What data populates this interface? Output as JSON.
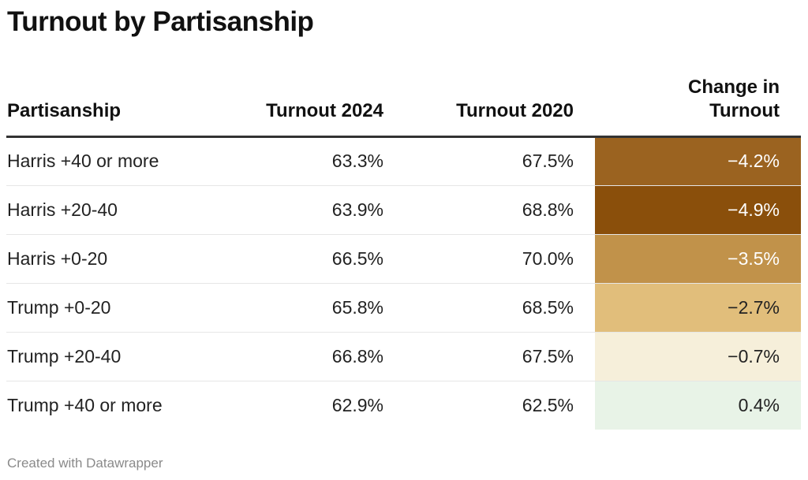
{
  "title": "Turnout by Partisanship",
  "credit": "Created with Datawrapper",
  "chart_data": {
    "type": "table",
    "title": "Turnout by Partisanship",
    "columns": [
      "Partisanship",
      "Turnout 2024",
      "Turnout 2020",
      "Change in Turnout"
    ],
    "rows": [
      {
        "partisanship": "Harris +40 or more",
        "turnout_2024": "63.3%",
        "turnout_2020": "67.5%",
        "change": "−4.2%",
        "change_value": -4.2,
        "color": "#9b6320"
      },
      {
        "partisanship": "Harris +20-40",
        "turnout_2024": "63.9%",
        "turnout_2020": "68.8%",
        "change": "−4.9%",
        "change_value": -4.9,
        "color": "#8a4f0b"
      },
      {
        "partisanship": "Harris +0-20",
        "turnout_2024": "66.5%",
        "turnout_2020": "70.0%",
        "change": "−3.5%",
        "change_value": -3.5,
        "color": "#c1924a"
      },
      {
        "partisanship": "Trump +0-20",
        "turnout_2024": "65.8%",
        "turnout_2020": "68.5%",
        "change": "−2.7%",
        "change_value": -2.7,
        "color": "#e1be7b"
      },
      {
        "partisanship": "Trump +20-40",
        "turnout_2024": "66.8%",
        "turnout_2020": "67.5%",
        "change": "−0.7%",
        "change_value": -0.7,
        "color": "#f6efda"
      },
      {
        "partisanship": "Trump +40 or more",
        "turnout_2024": "62.9%",
        "turnout_2020": "62.5%",
        "change": "0.4%",
        "change_value": 0.4,
        "color": "#e8f3e7"
      }
    ]
  }
}
